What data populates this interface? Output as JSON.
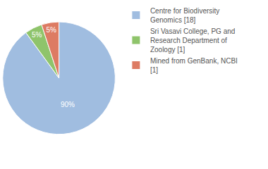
{
  "chart_data": {
    "type": "pie",
    "categories": [
      "Centre for Biodiversity Genomics [18]",
      "Sri Vasavi College, PG and Research Department of Zoology [1]",
      "Mined from GenBank, NCBI [1]"
    ],
    "values": [
      90,
      5,
      5
    ],
    "value_labels": [
      "90%",
      "5%",
      "5%"
    ],
    "colors": [
      "#a0bde0",
      "#8fc46b",
      "#dd7b63"
    ],
    "data_labels": true,
    "legend": "top right"
  }
}
